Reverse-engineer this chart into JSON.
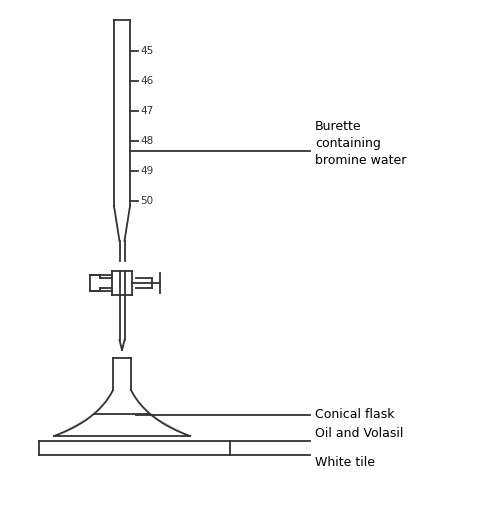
{
  "bg_color": "#ffffff",
  "line_color": "#333333",
  "label_color": "#000000",
  "burette_label": "Burette\ncontaining\nbromine water",
  "flask_label": "Conical flask",
  "tile_label": "Oil and Volasil\nWhite tile",
  "tick_labels": [
    "45",
    "46",
    "47",
    "48",
    "49",
    "50"
  ],
  "figsize": [
    4.8,
    5.16
  ],
  "dpi": 100
}
